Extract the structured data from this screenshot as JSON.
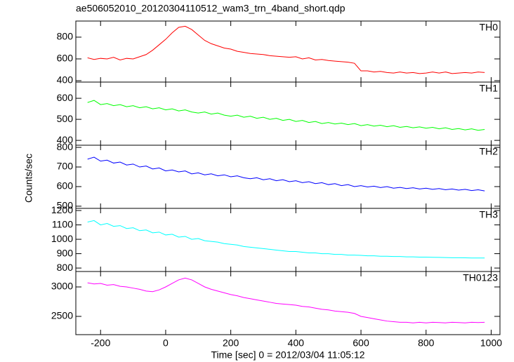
{
  "chart_data": {
    "type": "line",
    "title": "ae506052010_20120304110512_wam3_trn_4band_short.qdp",
    "xlabel": "Time [sec] 0 = 2012/03/04 11:05:12",
    "ylabel": "Counts/sec",
    "xlim": [
      -276,
      1027
    ],
    "xticks": [
      -200,
      0,
      200,
      400,
      600,
      800,
      1000
    ],
    "x": [
      -240,
      -220,
      -200,
      -180,
      -160,
      -140,
      -120,
      -100,
      -80,
      -60,
      -40,
      -20,
      0,
      20,
      40,
      60,
      80,
      100,
      120,
      140,
      160,
      180,
      200,
      220,
      240,
      260,
      280,
      300,
      320,
      340,
      360,
      380,
      400,
      420,
      440,
      460,
      480,
      500,
      520,
      540,
      560,
      580,
      600,
      620,
      640,
      660,
      680,
      700,
      720,
      740,
      760,
      780,
      800,
      820,
      840,
      860,
      880,
      900,
      920,
      940,
      960,
      980
    ],
    "series": [
      {
        "name": "TH0",
        "color": "#ff0000",
        "ylim": [
          387,
          948
        ],
        "yticks": [
          400,
          600,
          800
        ],
        "values": [
          610,
          595,
          605,
          600,
          615,
          590,
          605,
          600,
          620,
          640,
          680,
          730,
          780,
          840,
          890,
          900,
          870,
          820,
          770,
          740,
          720,
          700,
          690,
          670,
          660,
          650,
          645,
          640,
          630,
          625,
          620,
          615,
          620,
          600,
          610,
          590,
          595,
          585,
          580,
          575,
          570,
          560,
          490,
          490,
          480,
          485,
          475,
          470,
          480,
          470,
          475,
          465,
          470,
          480,
          470,
          480,
          465,
          470,
          475,
          470,
          480,
          475
        ]
      },
      {
        "name": "TH1",
        "color": "#00ff00",
        "ylim": [
          377,
          677
        ],
        "yticks": [
          400,
          500,
          600
        ],
        "values": [
          580,
          590,
          570,
          575,
          565,
          570,
          560,
          565,
          555,
          560,
          550,
          555,
          545,
          550,
          540,
          545,
          535,
          530,
          535,
          525,
          530,
          520,
          515,
          520,
          510,
          515,
          505,
          510,
          500,
          505,
          495,
          500,
          490,
          495,
          485,
          490,
          480,
          485,
          478,
          482,
          475,
          480,
          470,
          475,
          468,
          472,
          465,
          470,
          462,
          466,
          460,
          464,
          458,
          462,
          455,
          460,
          452,
          456,
          450,
          455,
          448,
          452
        ]
      },
      {
        "name": "TH2",
        "color": "#0000ff",
        "ylim": [
          489,
          811
        ],
        "yticks": [
          500,
          600,
          700,
          800
        ],
        "values": [
          740,
          750,
          730,
          735,
          720,
          725,
          710,
          715,
          700,
          705,
          690,
          695,
          680,
          685,
          675,
          680,
          665,
          670,
          660,
          665,
          655,
          660,
          650,
          655,
          645,
          640,
          645,
          635,
          640,
          630,
          635,
          625,
          630,
          620,
          625,
          615,
          620,
          610,
          615,
          605,
          610,
          600,
          605,
          598,
          602,
          595,
          600,
          592,
          596,
          590,
          594,
          588,
          592,
          586,
          590,
          584,
          588,
          582,
          586,
          580,
          584,
          578
        ]
      },
      {
        "name": "TH3",
        "color": "#00ffff",
        "ylim": [
          776,
          1215
        ],
        "yticks": [
          800,
          900,
          1000,
          1100,
          1200
        ],
        "values": [
          1120,
          1130,
          1100,
          1110,
          1090,
          1095,
          1075,
          1080,
          1060,
          1065,
          1045,
          1050,
          1030,
          1035,
          1015,
          1020,
          1000,
          1005,
          990,
          985,
          980,
          970,
          965,
          960,
          950,
          945,
          940,
          935,
          930,
          925,
          920,
          915,
          915,
          910,
          905,
          905,
          900,
          900,
          895,
          895,
          890,
          890,
          888,
          885,
          885,
          882,
          882,
          880,
          880,
          878,
          878,
          876,
          876,
          875,
          874,
          873,
          872,
          872,
          871,
          870,
          870,
          870
        ]
      },
      {
        "name": "TH0123",
        "color": "#ff00ff",
        "ylim": [
          2190,
          3262
        ],
        "yticks": [
          2500,
          3000
        ],
        "values": [
          3070,
          3050,
          3060,
          3030,
          3040,
          3010,
          3000,
          2980,
          2960,
          2930,
          2920,
          2950,
          3000,
          3060,
          3120,
          3150,
          3120,
          3060,
          3000,
          2960,
          2930,
          2900,
          2870,
          2850,
          2820,
          2800,
          2780,
          2760,
          2740,
          2720,
          2710,
          2700,
          2690,
          2670,
          2660,
          2640,
          2620,
          2610,
          2590,
          2580,
          2570,
          2550,
          2500,
          2480,
          2460,
          2440,
          2420,
          2410,
          2400,
          2400,
          2390,
          2400,
          2390,
          2400,
          2395,
          2390,
          2400,
          2395,
          2390,
          2400,
          2395,
          2400
        ]
      }
    ]
  }
}
